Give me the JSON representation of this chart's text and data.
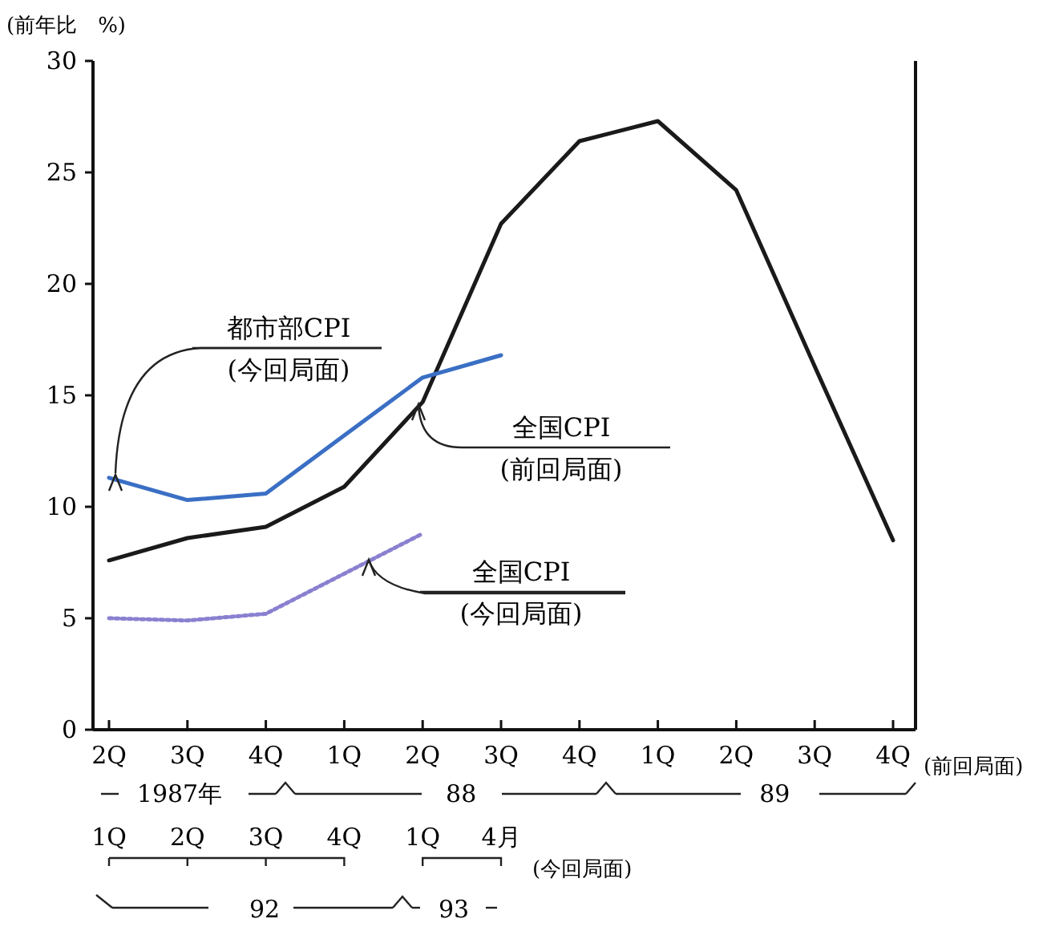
{
  "chart_data": {
    "type": "line",
    "ylabel": "(前年比　%)",
    "categories": [
      "2Q",
      "3Q",
      "4Q",
      "1Q",
      "2Q",
      "3Q",
      "4Q",
      "1Q",
      "2Q",
      "3Q",
      "4Q"
    ],
    "ylim": [
      0,
      30
    ],
    "yticks": [
      0,
      5,
      10,
      15,
      20,
      25,
      30
    ],
    "series": [
      {
        "name": "全国CPI (前回局面)",
        "color": "#1a1a1a",
        "line_style": "solid",
        "values": [
          7.6,
          8.6,
          9.1,
          10.9,
          14.7,
          22.7,
          26.4,
          27.3,
          24.2,
          16.3,
          8.5
        ]
      },
      {
        "name": "都市部CPI (今回局面)",
        "color": "#3a6fc4",
        "line_style": "solid",
        "values": [
          11.3,
          10.3,
          10.6,
          13.2,
          15.8,
          16.8,
          null,
          null,
          null,
          null,
          null
        ]
      },
      {
        "name": "全国CPI (今回局面)",
        "color": "#8a80d0",
        "line_style": "dotted",
        "values": [
          5.0,
          4.9,
          5.2,
          7.0,
          8.8,
          null,
          null,
          null,
          null,
          null,
          null
        ]
      }
    ],
    "annotations": [
      "1987年",
      "88",
      "89",
      "(前回局面)",
      "1Q",
      "2Q",
      "3Q",
      "4Q",
      "1Q",
      "4月",
      "(今回局面)",
      "92",
      "93"
    ]
  }
}
